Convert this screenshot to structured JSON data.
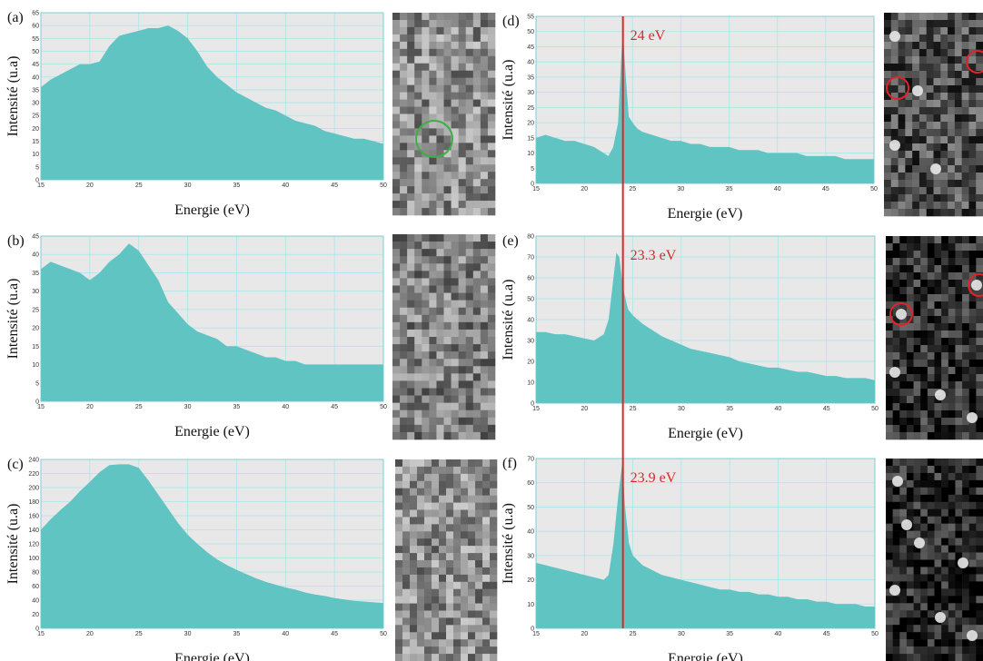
{
  "chart_data": [
    {
      "type": "area",
      "panel": "(a)",
      "color": "#5fc4c2",
      "grid": true,
      "xlabel": "Energie (eV)",
      "ylabel": "Intensité (u.a)",
      "x": [
        15,
        16,
        17,
        18,
        19,
        20,
        21,
        22,
        23,
        24,
        25,
        26,
        27,
        28,
        29,
        30,
        31,
        32,
        33,
        34,
        35,
        36,
        37,
        38,
        39,
        40,
        41,
        42,
        43,
        44,
        45,
        46,
        47,
        48,
        49,
        50
      ],
      "values": [
        36,
        39,
        41,
        43,
        45,
        45,
        46,
        52,
        56,
        57,
        58,
        59,
        59,
        60,
        58,
        55,
        50,
        44,
        40,
        37,
        34,
        32,
        30,
        28,
        27,
        25,
        23,
        22,
        21,
        19,
        18,
        17,
        16,
        16,
        15,
        14
      ],
      "xlim": [
        15,
        50
      ],
      "xticks": [
        15,
        20,
        25,
        30,
        35,
        40,
        45,
        50
      ],
      "ylim": [
        0,
        65
      ],
      "yticks": [
        0,
        5,
        10,
        15,
        20,
        25,
        30,
        35,
        40,
        45,
        50,
        55,
        60,
        65
      ]
    },
    {
      "type": "area",
      "panel": "(b)",
      "color": "#5fc4c2",
      "grid": true,
      "xlabel": "Energie (eV)",
      "ylabel": "Intensité (u.a)",
      "x": [
        15,
        16,
        17,
        18,
        19,
        20,
        21,
        22,
        23,
        24,
        25,
        26,
        27,
        28,
        29,
        30,
        31,
        32,
        33,
        34,
        35,
        36,
        37,
        38,
        39,
        40,
        41,
        42,
        43,
        44,
        45,
        46,
        47,
        48,
        49,
        50
      ],
      "values": [
        36,
        38,
        37,
        36,
        35,
        33,
        35,
        38,
        40,
        43,
        41,
        37,
        33,
        27,
        24,
        21,
        19,
        18,
        17,
        15,
        15,
        14,
        13,
        12,
        12,
        11,
        11,
        10,
        10,
        10,
        10,
        10,
        10,
        10,
        10,
        10
      ],
      "xlim": [
        15,
        50
      ],
      "xticks": [
        15,
        20,
        25,
        30,
        35,
        40,
        45,
        50
      ],
      "ylim": [
        0,
        45
      ],
      "yticks": [
        0,
        5,
        10,
        15,
        20,
        25,
        30,
        35,
        40,
        45
      ]
    },
    {
      "type": "area",
      "panel": "(c)",
      "color": "#5fc4c2",
      "grid": true,
      "xlabel": "Energie (eV)",
      "ylabel": "Intensité (u.a)",
      "x": [
        15,
        16,
        17,
        18,
        19,
        20,
        21,
        22,
        23,
        24,
        25,
        26,
        27,
        28,
        29,
        30,
        31,
        32,
        33,
        34,
        35,
        36,
        37,
        38,
        39,
        40,
        41,
        42,
        43,
        44,
        45,
        46,
        47,
        48,
        49,
        50
      ],
      "values": [
        140,
        155,
        168,
        180,
        195,
        208,
        222,
        232,
        233,
        233,
        228,
        210,
        190,
        170,
        150,
        133,
        120,
        108,
        98,
        90,
        83,
        77,
        71,
        66,
        62,
        58,
        55,
        51,
        48,
        46,
        43,
        41,
        39,
        38,
        37,
        36
      ],
      "xlim": [
        15,
        50
      ],
      "xticks": [
        15,
        20,
        25,
        30,
        35,
        40,
        45,
        50
      ],
      "ylim": [
        0,
        240
      ],
      "yticks": [
        0,
        20,
        40,
        60,
        80,
        100,
        120,
        140,
        160,
        180,
        200,
        220,
        240
      ]
    },
    {
      "type": "area",
      "panel": "(d)",
      "color": "#5fc4c2",
      "grid": true,
      "xlabel": "Energie (eV)",
      "ylabel": "Intensité (u.a)",
      "annotation": "24 eV",
      "vline": 24,
      "vline_color": "#e0242a",
      "x": [
        15,
        16,
        17,
        18,
        19,
        20,
        21,
        22,
        22.5,
        23,
        23.5,
        23.8,
        24,
        24.3,
        24.6,
        25,
        25.5,
        26,
        27,
        28,
        29,
        30,
        31,
        32,
        33,
        34,
        35,
        36,
        37,
        38,
        39,
        40,
        41,
        42,
        43,
        44,
        45,
        46,
        47,
        48,
        49,
        50
      ],
      "values": [
        15,
        16,
        15,
        14,
        14,
        13,
        12,
        10,
        9,
        12,
        20,
        40,
        50,
        35,
        22,
        20,
        18,
        17,
        16,
        15,
        14,
        14,
        13,
        13,
        12,
        12,
        12,
        11,
        11,
        11,
        10,
        10,
        10,
        10,
        9,
        9,
        9,
        9,
        8,
        8,
        8,
        8
      ],
      "xlim": [
        15,
        50
      ],
      "xticks": [
        15,
        20,
        25,
        30,
        35,
        40,
        45,
        50
      ],
      "ylim": [
        0,
        55
      ],
      "yticks": [
        0,
        5,
        10,
        15,
        20,
        25,
        30,
        35,
        40,
        45,
        50,
        55
      ]
    },
    {
      "type": "area",
      "panel": "(e)",
      "color": "#5fc4c2",
      "grid": true,
      "xlabel": "Energie (eV)",
      "ylabel": "Intensité (u.a)",
      "annotation": "23.3 eV",
      "x": [
        15,
        16,
        17,
        18,
        19,
        20,
        21,
        22,
        22.5,
        23,
        23.3,
        23.6,
        24,
        24.5,
        25,
        26,
        27,
        28,
        29,
        30,
        31,
        32,
        33,
        34,
        35,
        36,
        37,
        38,
        39,
        40,
        41,
        42,
        43,
        44,
        45,
        46,
        47,
        48,
        49,
        50
      ],
      "values": [
        34,
        34,
        33,
        33,
        32,
        31,
        30,
        33,
        40,
        60,
        72,
        70,
        55,
        45,
        42,
        38,
        35,
        32,
        30,
        28,
        26,
        25,
        24,
        23,
        22,
        20,
        19,
        18,
        17,
        17,
        16,
        15,
        15,
        14,
        13,
        13,
        12,
        12,
        12,
        11
      ],
      "xlim": [
        15,
        50
      ],
      "xticks": [
        15,
        20,
        25,
        30,
        35,
        40,
        45,
        50
      ],
      "ylim": [
        0,
        80
      ],
      "yticks": [
        0,
        10,
        20,
        30,
        40,
        50,
        60,
        70,
        80
      ]
    },
    {
      "type": "area",
      "panel": "(f)",
      "color": "#5fc4c2",
      "grid": true,
      "xlabel": "Energie (eV)",
      "ylabel": "Intensité (u.a)",
      "annotation": "23.9 eV",
      "x": [
        15,
        16,
        17,
        18,
        19,
        20,
        21,
        22,
        22.5,
        23,
        23.5,
        23.9,
        24.2,
        24.6,
        25,
        26,
        27,
        28,
        29,
        30,
        31,
        32,
        33,
        34,
        35,
        36,
        37,
        38,
        39,
        40,
        41,
        42,
        43,
        44,
        45,
        46,
        47,
        48,
        49,
        50
      ],
      "values": [
        27,
        26,
        25,
        24,
        23,
        22,
        21,
        20,
        22,
        35,
        55,
        68,
        50,
        35,
        30,
        26,
        24,
        22,
        21,
        20,
        19,
        18,
        17,
        16,
        16,
        15,
        15,
        14,
        14,
        13,
        13,
        12,
        12,
        11,
        11,
        10,
        10,
        10,
        9,
        9
      ],
      "xlim": [
        15,
        50
      ],
      "xticks": [
        15,
        20,
        25,
        30,
        35,
        40,
        45,
        50
      ],
      "ylim": [
        0,
        70
      ],
      "yticks": [
        0,
        10,
        20,
        30,
        40,
        50,
        60,
        70
      ]
    }
  ]
}
